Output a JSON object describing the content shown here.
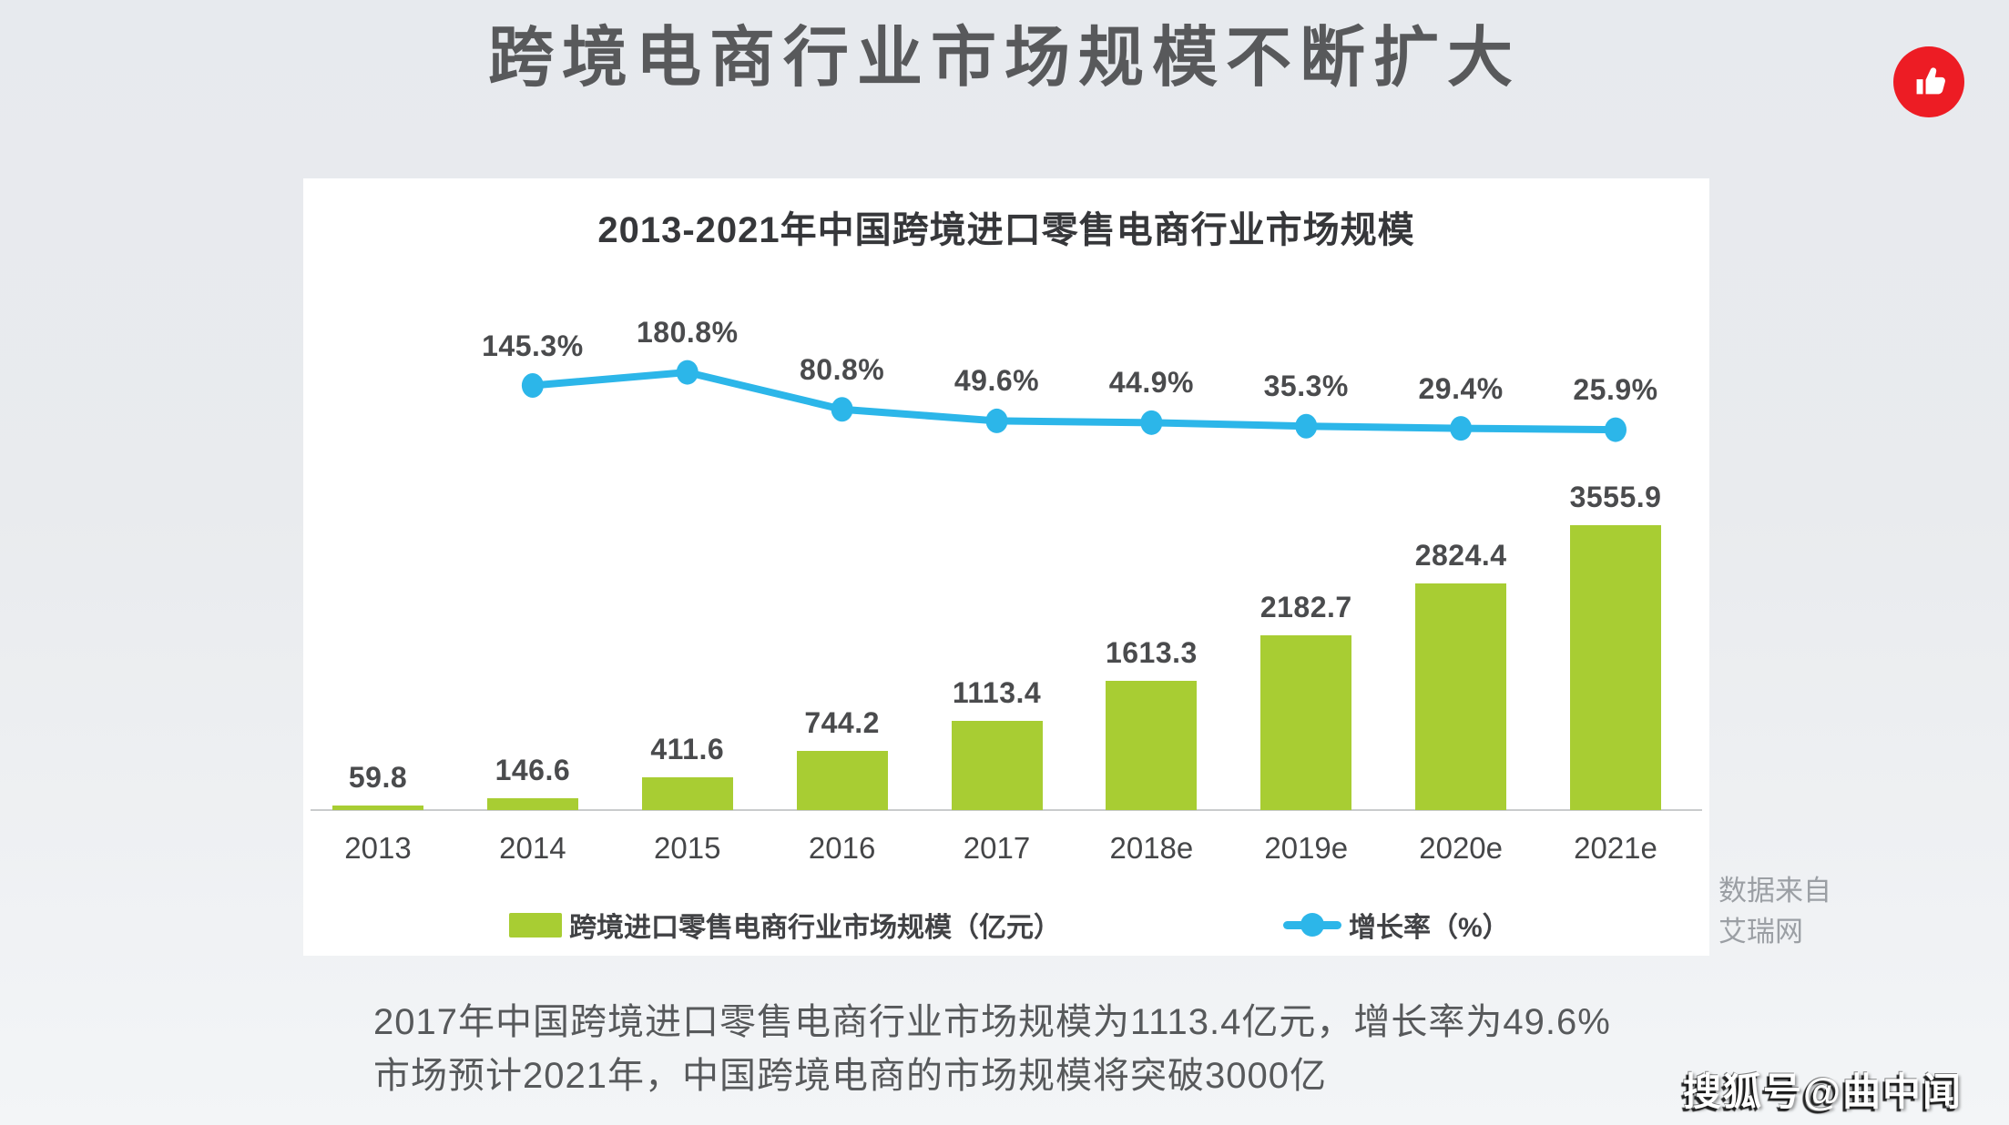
{
  "page": {
    "title": "跨境电商行业市场规模不断扩大",
    "source_note_lines": [
      "数据来自",
      "艾瑞网"
    ],
    "summary_lines": [
      "2017年中国跨境进口零售电商行业市场规模为1113.4亿元，增长率为49.6%",
      "市场预计2021年，中国跨境电商的市场规模将突破3000亿"
    ],
    "watermark": "搜狐号@曲中闻",
    "accent_red": "#ed1c24"
  },
  "chart_data": {
    "type": "combo-bar-line",
    "title": "2013-2021年中国跨境进口零售电商行业市场规模",
    "categories": [
      "2013",
      "2014",
      "2015",
      "2016",
      "2017",
      "2018e",
      "2019e",
      "2020e",
      "2021e"
    ],
    "series": [
      {
        "name": "跨境进口零售电商行业市场规模（亿元）",
        "type": "bar",
        "color": "#a8cd33",
        "values": [
          59.8,
          146.6,
          411.6,
          744.2,
          1113.4,
          1613.3,
          2182.7,
          2824.4,
          3555.9
        ],
        "value_labels": [
          "59.8",
          "146.6",
          "411.6",
          "744.2",
          "1113.4",
          "1613.3",
          "2182.7",
          "2824.4",
          "3555.9"
        ]
      },
      {
        "name": "增长率（%）",
        "type": "line",
        "color": "#2cb6e9",
        "values": [
          null,
          145.3,
          180.8,
          80.8,
          49.6,
          44.9,
          35.3,
          29.4,
          25.9
        ],
        "value_labels": [
          "",
          "145.3%",
          "180.8%",
          "80.8%",
          "49.6%",
          "44.9%",
          "35.3%",
          "29.4%",
          "25.9%"
        ]
      }
    ],
    "legend_position": "bottom",
    "grid": false,
    "value_axis_visible": false
  }
}
